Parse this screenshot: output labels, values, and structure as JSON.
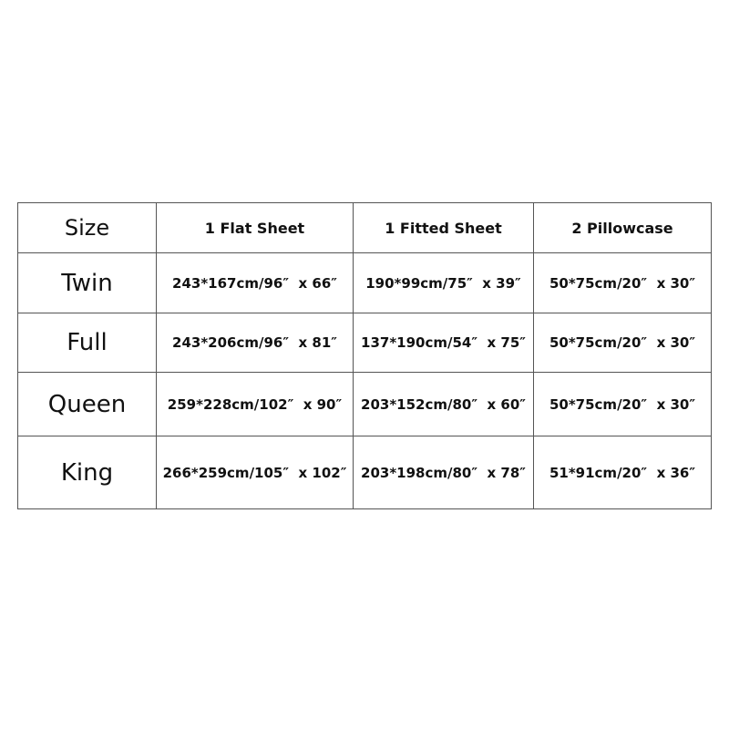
{
  "table": {
    "header": [
      "Size",
      "1 Flat Sheet",
      "1 Fitted Sheet",
      "2 Pillowcase"
    ],
    "rows": [
      [
        "Twin",
        "243*167cm/96″  x 66″",
        "190*99cm/75″  x 39″",
        "50*75cm/20″  x 30″"
      ],
      [
        "Full",
        "243*206cm/96″  x 81″",
        "137*190cm/54″  x 75″",
        "50*75cm/20″  x 30″"
      ],
      [
        "Queen",
        "259*228cm/102″  x 90″",
        "203*152cm/80″  x 60″",
        "50*75cm/20″  x 30″"
      ],
      [
        "King",
        "266*259cm/105″  x 102″",
        "203*198cm/80″  x 78″",
        "51*91cm/20″  x 36″"
      ]
    ]
  }
}
